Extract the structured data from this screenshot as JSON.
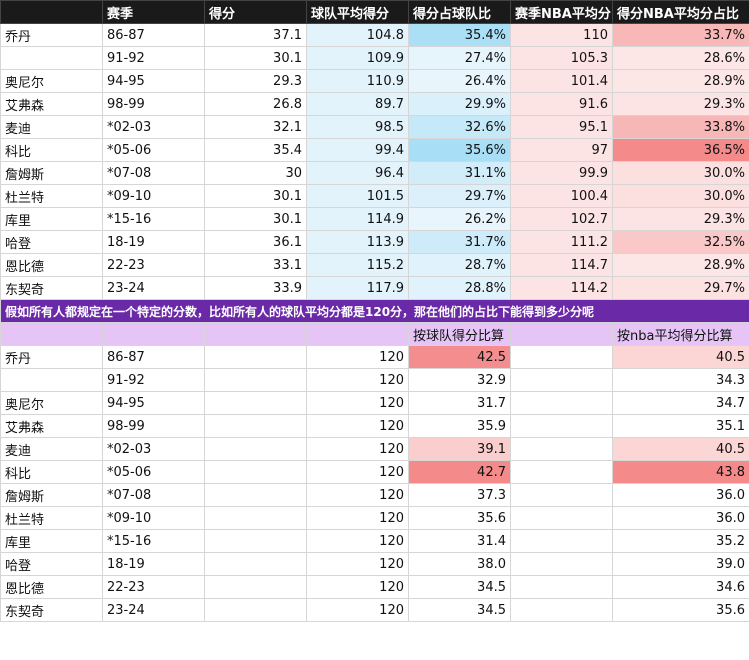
{
  "table1": {
    "headers": [
      "",
      "赛季",
      "得分",
      "球队平均得分",
      "得分占球队比",
      "赛季NBA平均分",
      "得分NBA平均分占比"
    ],
    "rows": [
      {
        "name": "乔丹",
        "season": "86-87",
        "pts": "37.1",
        "team_avg": "104.8",
        "pct_team": "35.4%",
        "nba_avg": "110",
        "pct_nba": "33.7%"
      },
      {
        "name": "",
        "season": "91-92",
        "pts": "30.1",
        "team_avg": "109.9",
        "pct_team": "27.4%",
        "nba_avg": "105.3",
        "pct_nba": "28.6%"
      },
      {
        "name": "奥尼尔",
        "season": "94-95",
        "pts": "29.3",
        "team_avg": "110.9",
        "pct_team": "26.4%",
        "nba_avg": "101.4",
        "pct_nba": "28.9%"
      },
      {
        "name": "艾弗森",
        "season": "98-99",
        "pts": "26.8",
        "team_avg": "89.7",
        "pct_team": "29.9%",
        "nba_avg": "91.6",
        "pct_nba": "29.3%"
      },
      {
        "name": "麦迪",
        "season": "*02-03",
        "pts": "32.1",
        "team_avg": "98.5",
        "pct_team": "32.6%",
        "nba_avg": "95.1",
        "pct_nba": "33.8%"
      },
      {
        "name": "科比",
        "season": "*05-06",
        "pts": "35.4",
        "team_avg": "99.4",
        "pct_team": "35.6%",
        "nba_avg": "97",
        "pct_nba": "36.5%"
      },
      {
        "name": "詹姆斯",
        "season": "*07-08",
        "pts": "30",
        "team_avg": "96.4",
        "pct_team": "31.1%",
        "nba_avg": "99.9",
        "pct_nba": "30.0%"
      },
      {
        "name": "杜兰特",
        "season": "*09-10",
        "pts": "30.1",
        "team_avg": "101.5",
        "pct_team": "29.7%",
        "nba_avg": "100.4",
        "pct_nba": "30.0%"
      },
      {
        "name": "库里",
        "season": "*15-16",
        "pts": "30.1",
        "team_avg": "114.9",
        "pct_team": "26.2%",
        "nba_avg": "102.7",
        "pct_nba": "29.3%"
      },
      {
        "name": "哈登",
        "season": "18-19",
        "pts": "36.1",
        "team_avg": "113.9",
        "pct_team": "31.7%",
        "nba_avg": "111.2",
        "pct_nba": "32.5%"
      },
      {
        "name": "恩比德",
        "season": "22-23",
        "pts": "33.1",
        "team_avg": "115.2",
        "pct_team": "28.7%",
        "nba_avg": "114.7",
        "pct_nba": "28.9%"
      },
      {
        "name": "东契奇",
        "season": "23-24",
        "pts": "33.9",
        "team_avg": "117.9",
        "pct_team": "28.8%",
        "nba_avg": "114.2",
        "pct_nba": "29.7%"
      }
    ]
  },
  "banner": "假如所有人都规定在一个特定的分数，比如所有人的球队平均分都是120分，那在他们的占比下能得到多少分呢",
  "table2": {
    "headers": [
      "按球队得分比算",
      "按nba平均得分比算"
    ],
    "rows": [
      {
        "name": "乔丹",
        "season": "86-87",
        "team": "120",
        "by_team": "42.5",
        "by_nba": "40.5"
      },
      {
        "name": "",
        "season": "91-92",
        "team": "120",
        "by_team": "32.9",
        "by_nba": "34.3"
      },
      {
        "name": "奥尼尔",
        "season": "94-95",
        "team": "120",
        "by_team": "31.7",
        "by_nba": "34.7"
      },
      {
        "name": "艾弗森",
        "season": "98-99",
        "team": "120",
        "by_team": "35.9",
        "by_nba": "35.1"
      },
      {
        "name": "麦迪",
        "season": "*02-03",
        "team": "120",
        "by_team": "39.1",
        "by_nba": "40.5"
      },
      {
        "name": "科比",
        "season": "*05-06",
        "team": "120",
        "by_team": "42.7",
        "by_nba": "43.8"
      },
      {
        "name": "詹姆斯",
        "season": "*07-08",
        "team": "120",
        "by_team": "37.3",
        "by_nba": "36.0"
      },
      {
        "name": "杜兰特",
        "season": "*09-10",
        "team": "120",
        "by_team": "35.6",
        "by_nba": "36.0"
      },
      {
        "name": "库里",
        "season": "*15-16",
        "team": "120",
        "by_team": "31.4",
        "by_nba": "35.2"
      },
      {
        "name": "哈登",
        "season": "18-19",
        "team": "120",
        "by_team": "38.0",
        "by_nba": "39.0"
      },
      {
        "name": "恩比德",
        "season": "22-23",
        "team": "120",
        "by_team": "34.5",
        "by_nba": "34.6"
      },
      {
        "name": "东契奇",
        "season": "23-24",
        "team": "120",
        "by_team": "34.5",
        "by_nba": "35.6"
      }
    ]
  },
  "colors": {
    "team_col_bg": "#e3f3fc",
    "pct_team_scale": [
      "#e8f5fc",
      "#a8def6"
    ],
    "nba_col_bg": "#fde4e4",
    "pct_nba_scale": [
      "#fde6e6",
      "#f48a8a"
    ],
    "banner_bg": "#6a2aa8",
    "subheader_bg": "#e6c4f6"
  }
}
